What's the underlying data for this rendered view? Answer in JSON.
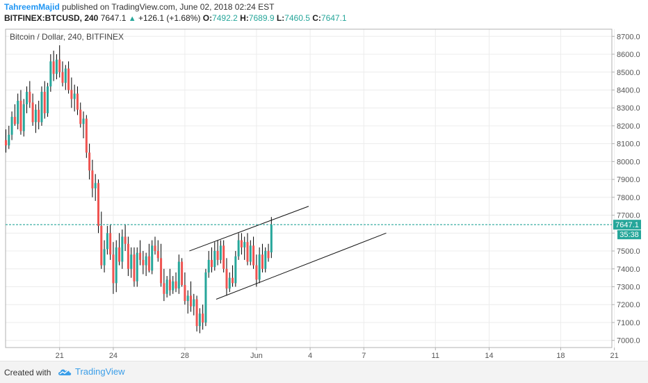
{
  "header": {
    "author": "TahreemMajid",
    "published_text": "published on TradingView.com, June 02, 2018 02:24 EST",
    "symbol": "BITFINEX:BTCUSD, 240",
    "last": "7647.1",
    "change": "+126.1 (+1.68%)",
    "o_label": "O:",
    "o_value": "7492.2",
    "h_label": "H:",
    "h_value": "7689.9",
    "l_label": "L:",
    "l_value": "7460.5",
    "c_label": "C:",
    "c_value": "7647.1"
  },
  "chart_title": "Bitcoin / Dollar, 240, BITFINEX",
  "price_tag": "7647.1",
  "countdown_tag": "35:38",
  "footer": {
    "created_with": "Created with",
    "brand": "TradingView"
  },
  "colors": {
    "up": "#26a69a",
    "down": "#ef5350",
    "accent": "#2196f3",
    "grid": "#ececec"
  },
  "chart_data": {
    "type": "candlestick",
    "ylim": [
      6960,
      8740
    ],
    "yticks": [
      7000.0,
      7100.0,
      7200.0,
      7300.0,
      7400.0,
      7500.0,
      7600.0,
      7700.0,
      7800.0,
      7900.0,
      8000.0,
      8100.0,
      8200.0,
      8300.0,
      8400.0,
      8500.0,
      8600.0,
      8700.0
    ],
    "xticks": [
      {
        "label": "21",
        "bar": 18
      },
      {
        "label": "24",
        "bar": 36
      },
      {
        "label": "28",
        "bar": 60
      },
      {
        "label": "Jun",
        "bar": 84
      },
      {
        "label": "4",
        "bar": 102
      },
      {
        "label": "7",
        "bar": 120
      },
      {
        "label": "11",
        "bar": 144
      },
      {
        "label": "14",
        "bar": 162
      },
      {
        "label": "18",
        "bar": 186
      },
      {
        "label": "21",
        "bar": 204
      }
    ],
    "current_price": 7647.1,
    "trendlines": [
      {
        "p1": {
          "bar": 61.5,
          "price": 7500
        },
        "p2": {
          "bar": 101.5,
          "price": 7750
        }
      },
      {
        "p1": {
          "bar": 70.5,
          "price": 7230
        },
        "p2": {
          "bar": 127.5,
          "price": 7600
        }
      }
    ],
    "candles": [
      {
        "o": 8120,
        "h": 8180,
        "l": 8050,
        "c": 8090
      },
      {
        "o": 8090,
        "h": 8200,
        "l": 8070,
        "c": 8150
      },
      {
        "o": 8150,
        "h": 8280,
        "l": 8120,
        "c": 8250
      },
      {
        "o": 8250,
        "h": 8320,
        "l": 8200,
        "c": 8210
      },
      {
        "o": 8210,
        "h": 8380,
        "l": 8180,
        "c": 8340
      },
      {
        "o": 8340,
        "h": 8400,
        "l": 8150,
        "c": 8170
      },
      {
        "o": 8170,
        "h": 8350,
        "l": 8140,
        "c": 8320
      },
      {
        "o": 8320,
        "h": 8420,
        "l": 8270,
        "c": 8390
      },
      {
        "o": 8390,
        "h": 8450,
        "l": 8300,
        "c": 8330
      },
      {
        "o": 8330,
        "h": 8380,
        "l": 8200,
        "c": 8220
      },
      {
        "o": 8220,
        "h": 8320,
        "l": 8160,
        "c": 8290
      },
      {
        "o": 8290,
        "h": 8340,
        "l": 8180,
        "c": 8220
      },
      {
        "o": 8220,
        "h": 8420,
        "l": 8200,
        "c": 8390
      },
      {
        "o": 8390,
        "h": 8450,
        "l": 8240,
        "c": 8270
      },
      {
        "o": 8270,
        "h": 8440,
        "l": 8250,
        "c": 8420
      },
      {
        "o": 8420,
        "h": 8600,
        "l": 8390,
        "c": 8560
      },
      {
        "o": 8560,
        "h": 8620,
        "l": 8450,
        "c": 8490
      },
      {
        "o": 8490,
        "h": 8600,
        "l": 8460,
        "c": 8570
      },
      {
        "o": 8570,
        "h": 8650,
        "l": 8470,
        "c": 8500
      },
      {
        "o": 8500,
        "h": 8560,
        "l": 8420,
        "c": 8440
      },
      {
        "o": 8440,
        "h": 8540,
        "l": 8400,
        "c": 8520
      },
      {
        "o": 8520,
        "h": 8560,
        "l": 8380,
        "c": 8400
      },
      {
        "o": 8400,
        "h": 8470,
        "l": 8300,
        "c": 8350
      },
      {
        "o": 8350,
        "h": 8430,
        "l": 8280,
        "c": 8380
      },
      {
        "o": 8380,
        "h": 8420,
        "l": 8260,
        "c": 8290
      },
      {
        "o": 8290,
        "h": 8330,
        "l": 8190,
        "c": 8210
      },
      {
        "o": 8210,
        "h": 8280,
        "l": 8130,
        "c": 8240
      },
      {
        "o": 8240,
        "h": 8260,
        "l": 8020,
        "c": 8050
      },
      {
        "o": 8050,
        "h": 8100,
        "l": 7900,
        "c": 7950
      },
      {
        "o": 7950,
        "h": 8010,
        "l": 7800,
        "c": 7850
      },
      {
        "o": 7850,
        "h": 7930,
        "l": 7780,
        "c": 7880
      },
      {
        "o": 7880,
        "h": 7900,
        "l": 7600,
        "c": 7640
      },
      {
        "o": 7640,
        "h": 7720,
        "l": 7400,
        "c": 7420
      },
      {
        "o": 7420,
        "h": 7560,
        "l": 7380,
        "c": 7510
      },
      {
        "o": 7510,
        "h": 7640,
        "l": 7480,
        "c": 7600
      },
      {
        "o": 7600,
        "h": 7650,
        "l": 7450,
        "c": 7480
      },
      {
        "o": 7480,
        "h": 7550,
        "l": 7260,
        "c": 7320
      },
      {
        "o": 7320,
        "h": 7560,
        "l": 7270,
        "c": 7520
      },
      {
        "o": 7520,
        "h": 7600,
        "l": 7420,
        "c": 7440
      },
      {
        "o": 7440,
        "h": 7620,
        "l": 7400,
        "c": 7580
      },
      {
        "o": 7580,
        "h": 7650,
        "l": 7500,
        "c": 7540
      },
      {
        "o": 7540,
        "h": 7580,
        "l": 7360,
        "c": 7400
      },
      {
        "o": 7400,
        "h": 7520,
        "l": 7350,
        "c": 7480
      },
      {
        "o": 7480,
        "h": 7520,
        "l": 7300,
        "c": 7330
      },
      {
        "o": 7330,
        "h": 7520,
        "l": 7300,
        "c": 7490
      },
      {
        "o": 7490,
        "h": 7560,
        "l": 7420,
        "c": 7450
      },
      {
        "o": 7450,
        "h": 7500,
        "l": 7370,
        "c": 7420
      },
      {
        "o": 7420,
        "h": 7490,
        "l": 7360,
        "c": 7470
      },
      {
        "o": 7470,
        "h": 7540,
        "l": 7380,
        "c": 7390
      },
      {
        "o": 7390,
        "h": 7560,
        "l": 7370,
        "c": 7530
      },
      {
        "o": 7530,
        "h": 7580,
        "l": 7480,
        "c": 7500
      },
      {
        "o": 7500,
        "h": 7560,
        "l": 7440,
        "c": 7460
      },
      {
        "o": 7460,
        "h": 7540,
        "l": 7300,
        "c": 7320
      },
      {
        "o": 7320,
        "h": 7400,
        "l": 7220,
        "c": 7260
      },
      {
        "o": 7260,
        "h": 7360,
        "l": 7240,
        "c": 7340
      },
      {
        "o": 7340,
        "h": 7400,
        "l": 7250,
        "c": 7280
      },
      {
        "o": 7280,
        "h": 7360,
        "l": 7260,
        "c": 7330
      },
      {
        "o": 7330,
        "h": 7380,
        "l": 7270,
        "c": 7290
      },
      {
        "o": 7290,
        "h": 7480,
        "l": 7260,
        "c": 7440
      },
      {
        "o": 7440,
        "h": 7460,
        "l": 7300,
        "c": 7310
      },
      {
        "o": 7310,
        "h": 7380,
        "l": 7200,
        "c": 7220
      },
      {
        "o": 7220,
        "h": 7280,
        "l": 7150,
        "c": 7250
      },
      {
        "o": 7250,
        "h": 7330,
        "l": 7160,
        "c": 7190
      },
      {
        "o": 7190,
        "h": 7260,
        "l": 7140,
        "c": 7230
      },
      {
        "o": 7230,
        "h": 7250,
        "l": 7050,
        "c": 7080
      },
      {
        "o": 7080,
        "h": 7180,
        "l": 7040,
        "c": 7150
      },
      {
        "o": 7150,
        "h": 7200,
        "l": 7060,
        "c": 7100
      },
      {
        "o": 7100,
        "h": 7400,
        "l": 7080,
        "c": 7380
      },
      {
        "o": 7380,
        "h": 7500,
        "l": 7350,
        "c": 7450
      },
      {
        "o": 7450,
        "h": 7520,
        "l": 7380,
        "c": 7410
      },
      {
        "o": 7410,
        "h": 7550,
        "l": 7390,
        "c": 7500
      },
      {
        "o": 7500,
        "h": 7560,
        "l": 7420,
        "c": 7450
      },
      {
        "o": 7450,
        "h": 7560,
        "l": 7430,
        "c": 7530
      },
      {
        "o": 7530,
        "h": 7560,
        "l": 7380,
        "c": 7400
      },
      {
        "o": 7400,
        "h": 7460,
        "l": 7250,
        "c": 7290
      },
      {
        "o": 7290,
        "h": 7380,
        "l": 7270,
        "c": 7350
      },
      {
        "o": 7350,
        "h": 7420,
        "l": 7300,
        "c": 7320
      },
      {
        "o": 7320,
        "h": 7500,
        "l": 7300,
        "c": 7470
      },
      {
        "o": 7470,
        "h": 7600,
        "l": 7450,
        "c": 7560
      },
      {
        "o": 7560,
        "h": 7600,
        "l": 7480,
        "c": 7520
      },
      {
        "o": 7520,
        "h": 7580,
        "l": 7450,
        "c": 7550
      },
      {
        "o": 7550,
        "h": 7600,
        "l": 7420,
        "c": 7440
      },
      {
        "o": 7440,
        "h": 7560,
        "l": 7420,
        "c": 7530
      },
      {
        "o": 7530,
        "h": 7580,
        "l": 7400,
        "c": 7420
      },
      {
        "o": 7420,
        "h": 7480,
        "l": 7300,
        "c": 7340
      },
      {
        "o": 7340,
        "h": 7520,
        "l": 7320,
        "c": 7480
      },
      {
        "o": 7480,
        "h": 7540,
        "l": 7380,
        "c": 7400
      },
      {
        "o": 7400,
        "h": 7520,
        "l": 7380,
        "c": 7500
      },
      {
        "o": 7500,
        "h": 7540,
        "l": 7440,
        "c": 7460
      },
      {
        "o": 7492.2,
        "h": 7689.9,
        "l": 7460.5,
        "c": 7647.1
      }
    ]
  }
}
